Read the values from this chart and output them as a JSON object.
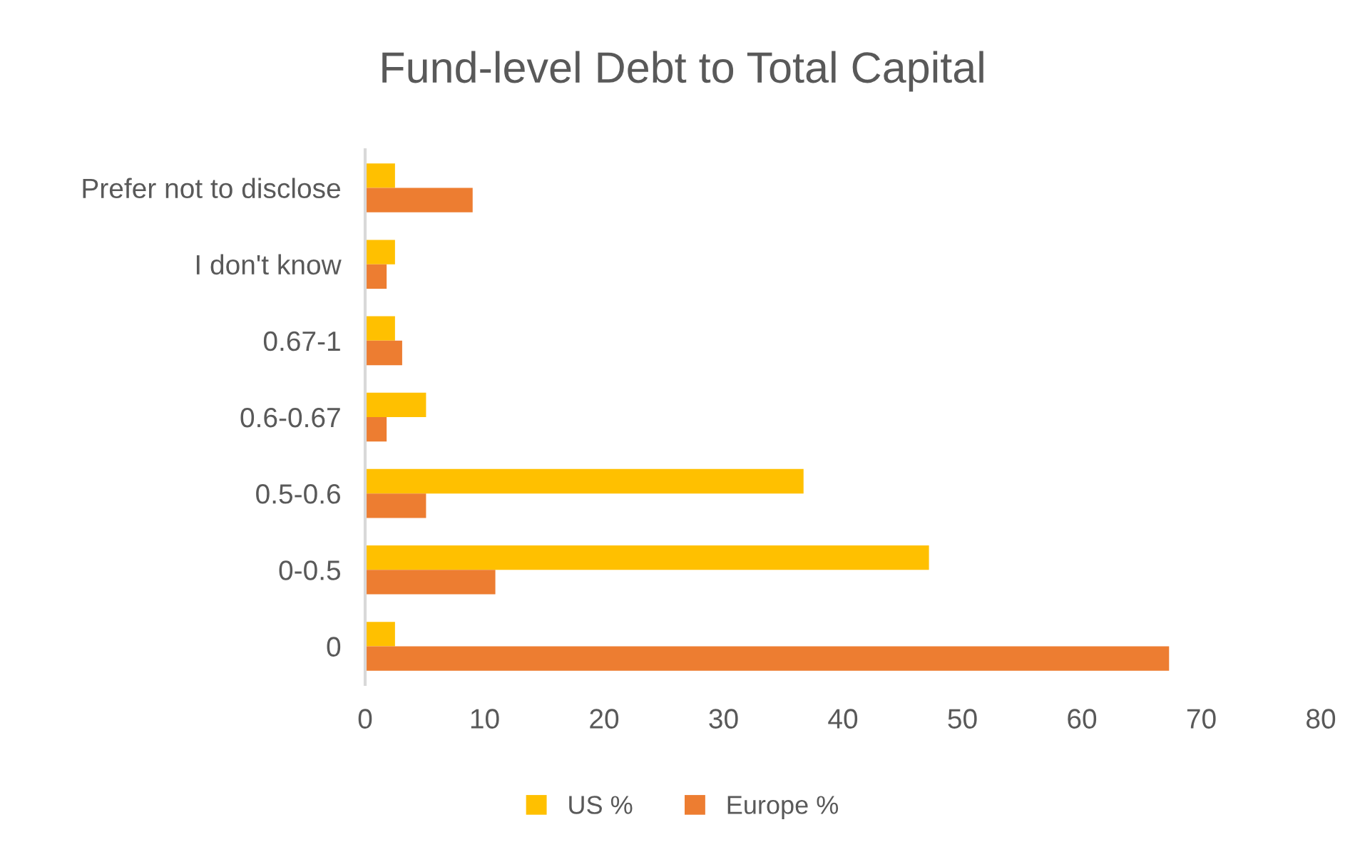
{
  "chart_data": {
    "type": "bar",
    "orientation": "horizontal",
    "title": "Fund-level Debt to Total Capital",
    "categories": [
      "Prefer not to disclose",
      "I don't know",
      "0.67-1",
      "0.6-0.67",
      "0.5-0.6",
      "0-0.5",
      "0"
    ],
    "series": [
      {
        "name": "US %",
        "color": "#ffc000",
        "values": [
          2.5,
          2.5,
          2.5,
          5.1,
          36.7,
          47.2,
          2.5
        ]
      },
      {
        "name": "Europe %",
        "color": "#ed7d31",
        "values": [
          9.0,
          1.8,
          3.1,
          1.8,
          5.1,
          10.9,
          67.3
        ]
      }
    ],
    "xlim": [
      0,
      80
    ],
    "xticks": [
      0,
      10,
      20,
      30,
      40,
      50,
      60,
      70,
      80
    ],
    "grid": false,
    "legend": "bottom"
  }
}
